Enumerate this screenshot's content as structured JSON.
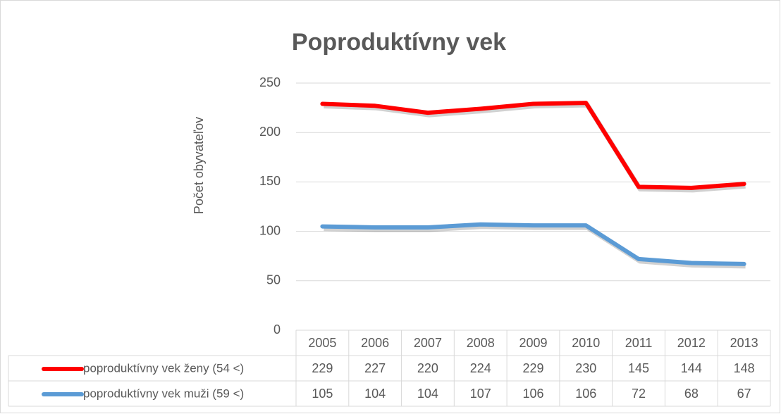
{
  "chart_data": {
    "type": "line",
    "title": "Poproduktívny vek",
    "y_label": "Počet obyvateľov",
    "categories": [
      "2005",
      "2006",
      "2007",
      "2008",
      "2009",
      "2010",
      "2011",
      "2012",
      "2013"
    ],
    "series": [
      {
        "name": "poproduktívny vek ženy (54 <)",
        "color": "#ff0000",
        "values": [
          229,
          227,
          220,
          224,
          229,
          230,
          145,
          144,
          148
        ]
      },
      {
        "name": "poproduktívny vek muži (59 <)",
        "color": "#5b9bd5",
        "values": [
          105,
          104,
          104,
          107,
          106,
          106,
          72,
          68,
          67
        ]
      }
    ],
    "ylim": [
      0,
      250
    ],
    "yticks": [
      0,
      50,
      100,
      150,
      200,
      250
    ],
    "grid": true,
    "data_table": true
  }
}
